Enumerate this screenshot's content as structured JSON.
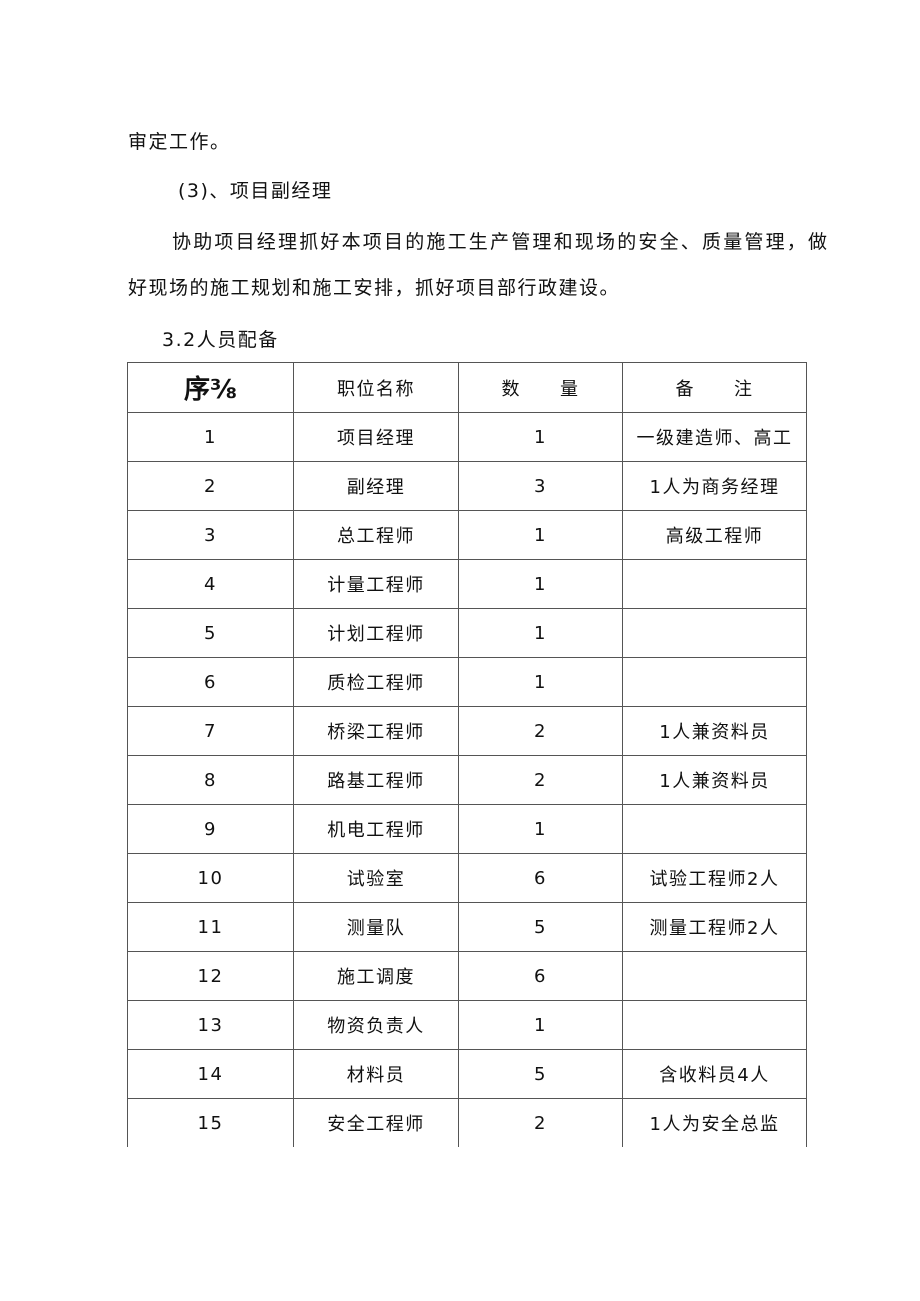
{
  "paragraphs": {
    "p1": "审定工作。",
    "p2": "(3)、项目副经理",
    "p3a": "协助项目经理抓好本项目的施工生产管理和现场的安全、质量管理，做",
    "p3b": "好现场的施工规划和施工安排，抓好项目部行政建设。",
    "section": "3.2人员配备"
  },
  "table": {
    "headers": [
      "序⅜",
      "职位名称",
      "数　　量",
      "备　　注"
    ],
    "rows": [
      [
        "1",
        "项目经理",
        "1",
        "一级建造师、高工"
      ],
      [
        "2",
        "副经理",
        "3",
        "1人为商务经理"
      ],
      [
        "3",
        "总工程师",
        "1",
        "高级工程师"
      ],
      [
        "4",
        "计量工程师",
        "1",
        ""
      ],
      [
        "5",
        "计划工程师",
        "1",
        ""
      ],
      [
        "6",
        "质检工程师",
        "1",
        ""
      ],
      [
        "7",
        "桥梁工程师",
        "2",
        "1人兼资料员"
      ],
      [
        "8",
        "路基工程师",
        "2",
        "1人兼资料员"
      ],
      [
        "9",
        "机电工程师",
        "1",
        ""
      ],
      [
        "10",
        "试验室",
        "6",
        "试验工程师2人"
      ],
      [
        "11",
        "测量队",
        "5",
        "测量工程师2人"
      ],
      [
        "12",
        "施工调度",
        "6",
        ""
      ],
      [
        "13",
        "物资负责人",
        "1",
        ""
      ],
      [
        "14",
        "材料员",
        "5",
        "含收料员4人"
      ],
      [
        "15",
        "安全工程师",
        "2",
        "1人为安全总监"
      ]
    ]
  }
}
